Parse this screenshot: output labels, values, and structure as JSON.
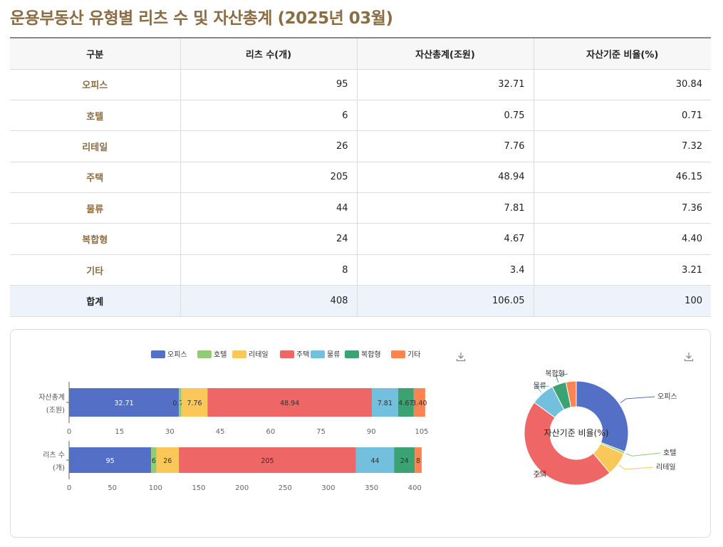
{
  "page": {
    "title": "운용부동산 유형별 리츠 수 및 자산총계 (2025년 03월)"
  },
  "table": {
    "headers": [
      "구분",
      "리츠 수(개)",
      "자산총계(조원)",
      "자산기준 비율(%)"
    ],
    "rows": [
      {
        "cat": "오피스",
        "count": "95",
        "assets": "32.71",
        "ratio": "30.84"
      },
      {
        "cat": "호텔",
        "count": "6",
        "assets": "0.75",
        "ratio": "0.71"
      },
      {
        "cat": "리테일",
        "count": "26",
        "assets": "7.76",
        "ratio": "7.32"
      },
      {
        "cat": "주택",
        "count": "205",
        "assets": "48.94",
        "ratio": "46.15"
      },
      {
        "cat": "물류",
        "count": "44",
        "assets": "7.81",
        "ratio": "7.36"
      },
      {
        "cat": "복합형",
        "count": "24",
        "assets": "4.67",
        "ratio": "4.40"
      },
      {
        "cat": "기타",
        "count": "8",
        "assets": "3.4",
        "ratio": "3.21"
      }
    ],
    "total": {
      "cat": "합계",
      "count": "408",
      "assets": "106.05",
      "ratio": "100"
    }
  },
  "chart_data": [
    {
      "type": "bar",
      "orientation": "horizontal",
      "stacked": true,
      "legend": {
        "position": "top"
      },
      "series_names": [
        "오피스",
        "호텔",
        "리테일",
        "주택",
        "물류",
        "복합형",
        "기타"
      ],
      "colors": [
        "#5470c6",
        "#91cc75",
        "#fac858",
        "#ee6666",
        "#73c0de",
        "#3ba272",
        "#fc8452"
      ],
      "panels": [
        {
          "category_label": [
            "자산총계",
            "(조원)"
          ],
          "values": [
            32.71,
            0.75,
            7.76,
            48.94,
            7.81,
            4.67,
            3.4
          ],
          "data_labels": [
            "32.71",
            "0.75",
            "7.76",
            "48.94",
            "7.81",
            "4.67",
            "3.40"
          ],
          "xlim": [
            0,
            105
          ],
          "ticks": [
            0,
            15,
            30,
            45,
            60,
            75,
            90,
            105
          ]
        },
        {
          "category_label": [
            "리츠 수",
            "(개)"
          ],
          "values": [
            95,
            6,
            26,
            205,
            44,
            24,
            8
          ],
          "data_labels": [
            "95",
            "6",
            "26",
            "205",
            "44",
            "24",
            "8"
          ],
          "xlim": [
            0,
            408
          ],
          "ticks": [
            0,
            50,
            100,
            150,
            200,
            250,
            300,
            350,
            400
          ]
        }
      ]
    },
    {
      "type": "pie",
      "donut": true,
      "center_label": "자산기준 비율(%)",
      "categories": [
        "오피스",
        "호텔",
        "리테일",
        "주택",
        "물류",
        "복합형",
        "기타"
      ],
      "values": [
        30.84,
        0.71,
        7.32,
        46.15,
        7.36,
        4.4,
        3.21
      ],
      "colors": [
        "#5470c6",
        "#91cc75",
        "#fac858",
        "#ee6666",
        "#73c0de",
        "#3ba272",
        "#fc8452"
      ]
    }
  ],
  "icons": {
    "download": "download-icon"
  }
}
